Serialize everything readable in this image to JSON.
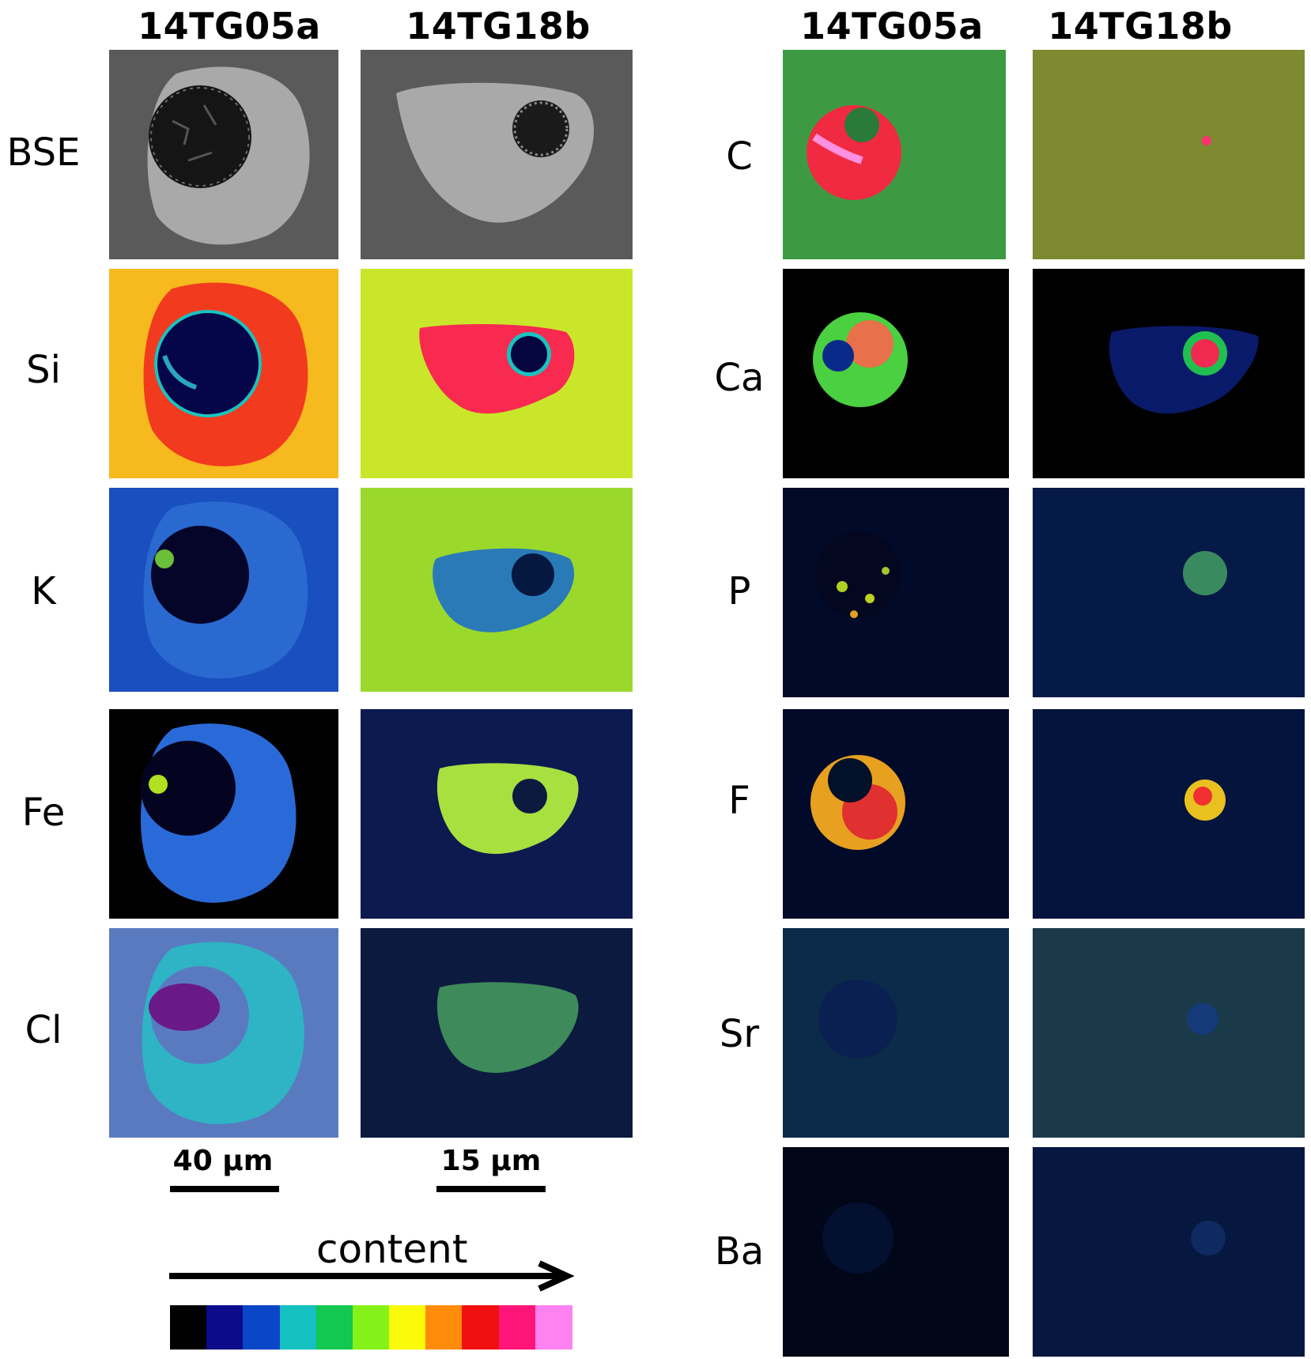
{
  "columns": {
    "left": [
      "14TG05a",
      "14TG18b"
    ],
    "right": [
      "14TG05a",
      "14TG18b"
    ]
  },
  "rows": {
    "left": [
      "BSE",
      "Si",
      "K",
      "Fe",
      "Cl"
    ],
    "right": [
      "C",
      "Ca",
      "P",
      "F",
      "Sr",
      "Ba"
    ]
  },
  "scale_bars": [
    "40 µm",
    "15 µm"
  ],
  "legend": {
    "label": "content",
    "colors": [
      "#000000",
      "#0b0b8c",
      "#0a46c8",
      "#14c0c0",
      "#12c850",
      "#84f218",
      "#fafa0a",
      "#ff8c0a",
      "#f01010",
      "#ff1478",
      "#ff82f0"
    ]
  }
}
